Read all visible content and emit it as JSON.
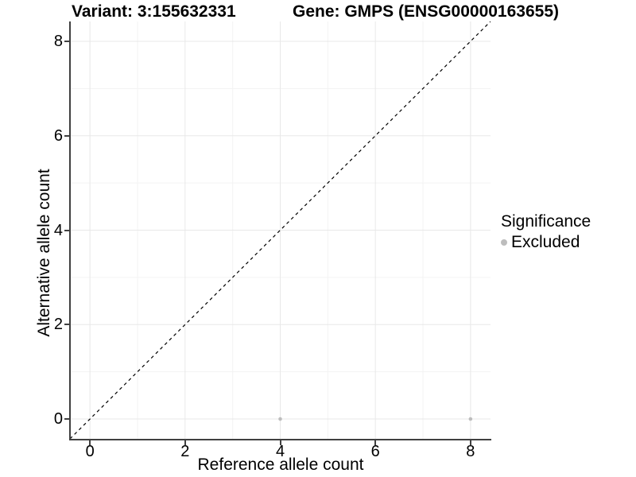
{
  "header": {
    "variant_title": "Variant: 3:155632331",
    "gene_title": "Gene: GMPS (ENSG00000163655)"
  },
  "axes": {
    "x": {
      "label": "Reference allele count",
      "ticks": [
        "0",
        "2",
        "4",
        "6",
        "8"
      ]
    },
    "y": {
      "label": "Alternative allele count",
      "ticks": [
        "0",
        "2",
        "4",
        "6",
        "8"
      ]
    }
  },
  "legend": {
    "title": "Significance",
    "items": [
      {
        "label": "Excluded",
        "color": "#bdbdbd"
      }
    ]
  },
  "chart_data": {
    "type": "scatter",
    "title": "Variant: 3:155632331 | Gene: GMPS (ENSG00000163655)",
    "xlabel": "Reference allele count",
    "ylabel": "Alternative allele count",
    "xlim": [
      -0.42,
      8.42
    ],
    "ylim": [
      -0.42,
      8.42
    ],
    "x_major_ticks": [
      0,
      2,
      4,
      6,
      8
    ],
    "y_major_ticks": [
      0,
      2,
      4,
      6,
      8
    ],
    "x_minor_ticks": [
      1,
      3,
      5,
      7
    ],
    "y_minor_ticks": [
      1,
      3,
      5,
      7
    ],
    "grid": true,
    "legend_position": "right",
    "series": [
      {
        "name": "Excluded",
        "color": "#bdbdbd",
        "points": [
          {
            "x": 4,
            "y": 0
          },
          {
            "x": 8,
            "y": 0
          }
        ]
      }
    ],
    "reference_line": {
      "type": "identity",
      "style": "dashed",
      "color": "#000000",
      "from": [
        -0.42,
        -0.42
      ],
      "to": [
        8.42,
        8.42
      ]
    },
    "style": {
      "background": "#ffffff",
      "grid_major": "#e8e8e8",
      "grid_minor": "#f3f3f3",
      "axis_line": "#404040",
      "text_color": "#000000"
    }
  }
}
